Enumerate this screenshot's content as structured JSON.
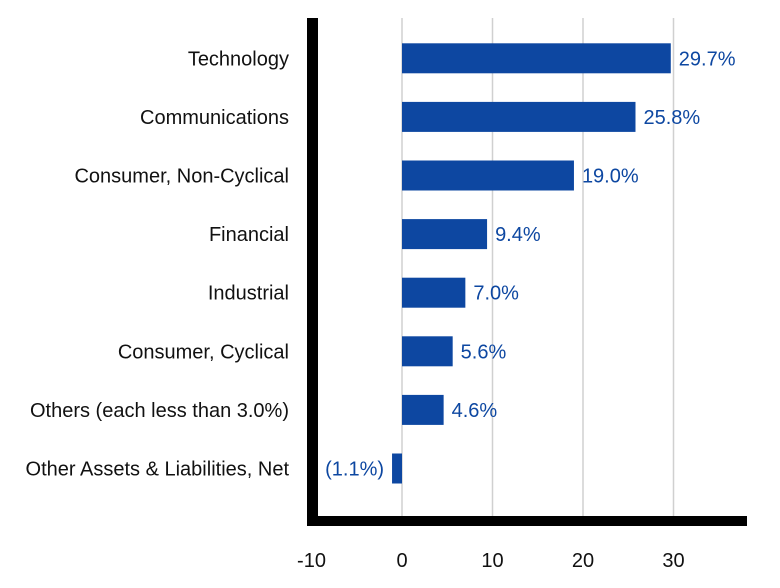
{
  "chart_data": {
    "type": "bar",
    "orientation": "horizontal",
    "categories": [
      "Technology",
      "Communications",
      "Consumer, Non-Cyclical",
      "Financial",
      "Industrial",
      "Consumer, Cyclical",
      "Others (each less than 3.0%)",
      "Other Assets & Liabilities, Net"
    ],
    "values": [
      29.7,
      25.8,
      19.0,
      9.4,
      7.0,
      5.6,
      4.6,
      -1.1
    ],
    "data_labels": [
      "29.7%",
      "25.8%",
      "19.0%",
      "9.4%",
      "7.0%",
      "5.6%",
      "4.6%",
      "(1.1%)"
    ],
    "xlim": [
      -10,
      38
    ],
    "xticks": [
      -10,
      0,
      10,
      20,
      30
    ],
    "xtick_labels": [
      "-10",
      "0",
      "10",
      "20",
      "30"
    ],
    "grid": true,
    "bar_color": "#0d47a1",
    "label_color": "#0d47a1",
    "axis_color": "#000000",
    "grid_color": "#d0d0d0"
  }
}
